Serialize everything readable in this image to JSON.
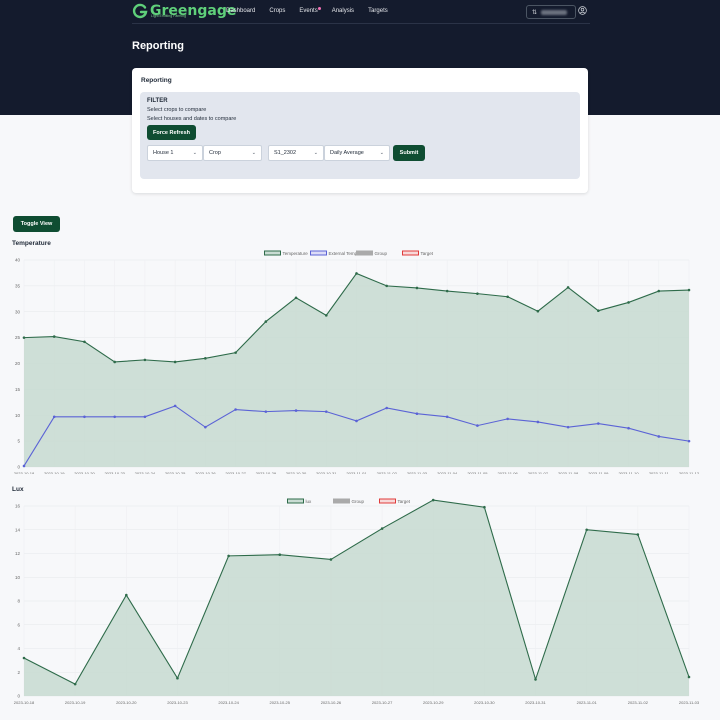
{
  "app": {
    "brand": "Greengage",
    "tagline": "Light Emitting Farming",
    "nav": [
      "Dashboard",
      "Crops",
      "Events",
      "Analysis",
      "Targets"
    ]
  },
  "page": {
    "title": "Reporting"
  },
  "card": {
    "title": "Reporting",
    "filter_title": "FILTER",
    "line1": "Select crops to compare",
    "line2": "Select houses and dates to compare",
    "refresh_label": "Force Refresh",
    "house": "House 1",
    "crop": "Crop",
    "batch": "S1_2302",
    "aggregation": "Daily Average",
    "submit_label": "Submit"
  },
  "toggle_label": "Toggle View",
  "colors": {
    "accent": "#0f4d32",
    "header_bg": "#141b2d",
    "series_main": "#2e6b4a",
    "series_fill": "#c9dcd3",
    "series_external": "#5b63d6",
    "series_group": "#aaaaaa",
    "series_target": "#e03b3b"
  },
  "chart_data": [
    {
      "type": "area",
      "title": "Temperature",
      "ylim": [
        0,
        40
      ],
      "yticks": [
        0,
        5,
        10,
        15,
        20,
        25,
        30,
        35,
        40
      ],
      "grid": true,
      "legend_position": "top-center",
      "legend": [
        "Temperature",
        "External Temperature",
        "Group",
        "Target"
      ],
      "x": [
        "2023-10-18",
        "2023-10-19",
        "2023-10-20",
        "2023-10-23",
        "2023-10-24",
        "2023-10-25",
        "2023-10-26",
        "2023-10-27",
        "2023-10-29",
        "2023-10-30",
        "2023-10-31",
        "2023-11-01",
        "2023-11-02",
        "2023-11-03",
        "2023-11-04",
        "2023-11-05",
        "2023-11-06",
        "2023-11-07",
        "2023-11-08",
        "2023-11-09",
        "2023-11-10",
        "2023-11-11",
        "2023-11-12"
      ],
      "series": [
        {
          "name": "Temperature",
          "values": [
            25.0,
            25.2,
            24.2,
            20.3,
            20.7,
            20.3,
            21.0,
            22.1,
            28.1,
            32.7,
            29.3,
            37.4,
            35.0,
            34.6,
            34.0,
            33.5,
            32.9,
            30.1,
            34.7,
            30.2,
            31.8,
            34.0,
            34.2
          ]
        },
        {
          "name": "External Temperature",
          "values": [
            0.2,
            9.7,
            9.7,
            9.7,
            9.7,
            11.8,
            7.7,
            11.1,
            10.7,
            10.9,
            10.7,
            8.9,
            11.4,
            10.3,
            9.7,
            8.0,
            9.3,
            8.7,
            7.7,
            8.4,
            7.5,
            5.9,
            5.0
          ]
        }
      ]
    },
    {
      "type": "area",
      "title": "Lux",
      "ylim": [
        0,
        16
      ],
      "yticks": [
        0,
        2,
        4,
        6,
        8,
        10,
        12,
        14,
        16
      ],
      "grid": true,
      "legend_position": "top-center",
      "legend": [
        "lux",
        "Group",
        "Target"
      ],
      "x": [
        "2023-10-18",
        "2023-10-19",
        "2023-10-20",
        "2023-10-23",
        "2023-10-24",
        "2023-10-25",
        "2023-10-26",
        "2023-10-27",
        "2023-10-29",
        "2023-10-30",
        "2023-10-31",
        "2023-11-01",
        "2023-11-02",
        "2023-11-03"
      ],
      "series": [
        {
          "name": "lux",
          "values": [
            3.2,
            1.0,
            8.5,
            1.5,
            11.8,
            11.9,
            11.5,
            14.1,
            16.5,
            15.9,
            1.4,
            14.0,
            13.6,
            1.6
          ]
        }
      ]
    }
  ]
}
